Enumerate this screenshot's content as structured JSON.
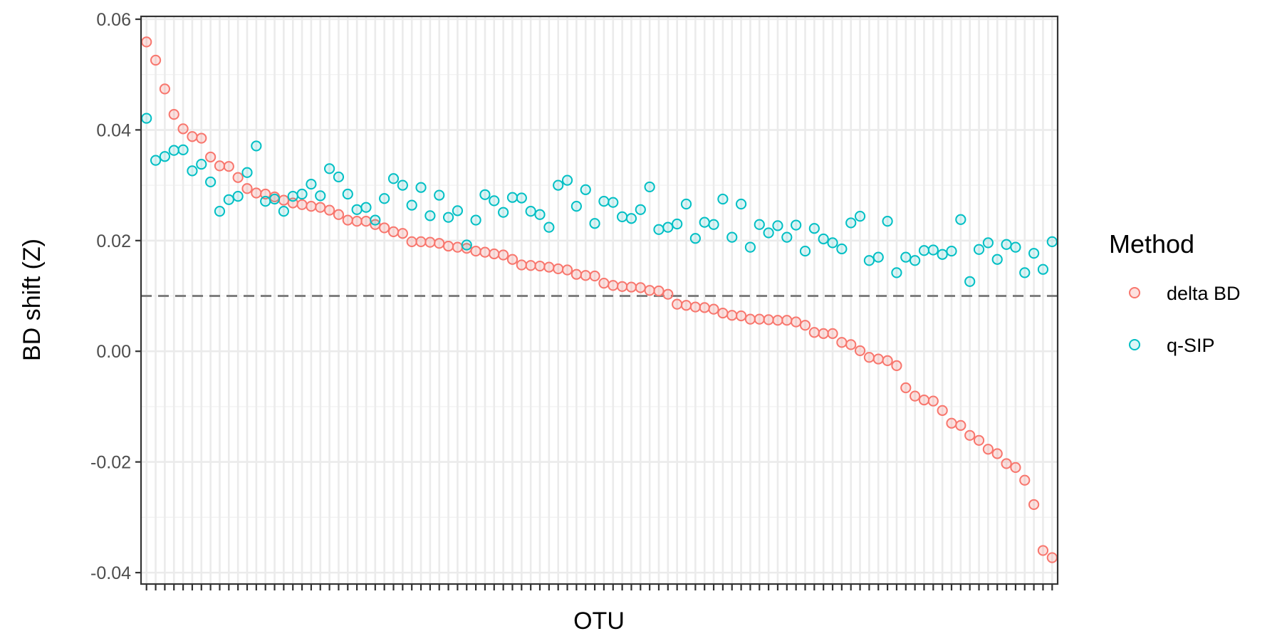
{
  "chart_data": {
    "type": "scatter",
    "title": "",
    "xlabel": "OTU",
    "ylabel": "BD shift (Z)",
    "ylim": [
      -0.0405,
      0.0605
    ],
    "yticks": [
      -0.04,
      -0.02,
      0.0,
      0.02,
      0.04,
      0.06
    ],
    "ytick_labels": [
      "-0.04",
      "-0.02",
      "0.00",
      "0.02",
      "0.04",
      "0.06"
    ],
    "x_tick_labels_visible": false,
    "grid": true,
    "threshold": 0.01,
    "legend": {
      "title": "Method",
      "position": "right"
    },
    "series": [
      {
        "name": "delta BD",
        "color": "#F8766D",
        "values": [
          0.0559,
          0.0526,
          0.0474,
          0.0428,
          0.0402,
          0.0388,
          0.0385,
          0.0351,
          0.0335,
          0.0334,
          0.0314,
          0.0294,
          0.0286,
          0.0284,
          0.0279,
          0.0273,
          0.0268,
          0.0265,
          0.0262,
          0.026,
          0.0255,
          0.0247,
          0.0237,
          0.0235,
          0.0235,
          0.0229,
          0.0223,
          0.0216,
          0.0213,
          0.0198,
          0.0198,
          0.0197,
          0.0195,
          0.019,
          0.0188,
          0.0186,
          0.0181,
          0.0179,
          0.0176,
          0.0174,
          0.0166,
          0.0156,
          0.0155,
          0.0154,
          0.0152,
          0.0149,
          0.0147,
          0.0139,
          0.0137,
          0.0136,
          0.0123,
          0.0119,
          0.0117,
          0.0116,
          0.0115,
          0.011,
          0.0109,
          0.0103,
          0.0085,
          0.0083,
          0.008,
          0.0079,
          0.0076,
          0.0069,
          0.0065,
          0.0064,
          0.0058,
          0.0058,
          0.0057,
          0.0056,
          0.0056,
          0.0053,
          0.0047,
          0.0034,
          0.0032,
          0.0032,
          0.0016,
          0.0012,
          0.0001,
          -0.0011,
          -0.0014,
          -0.0017,
          -0.0026,
          -0.0066,
          -0.0081,
          -0.0088,
          -0.009,
          -0.0107,
          -0.013,
          -0.0134,
          -0.0152,
          -0.0161,
          -0.0177,
          -0.0185,
          -0.0203,
          -0.021,
          -0.0233,
          -0.0277,
          -0.036,
          -0.0373
        ]
      },
      {
        "name": "q-SIP",
        "color": "#00BFC4",
        "values": [
          0.0421,
          0.0345,
          0.0352,
          0.0363,
          0.0364,
          0.0326,
          0.0338,
          0.0306,
          0.0253,
          0.0274,
          0.028,
          0.0323,
          0.0371,
          0.0271,
          0.0275,
          0.0253,
          0.028,
          0.0284,
          0.0302,
          0.0281,
          0.033,
          0.0315,
          0.0284,
          0.0256,
          0.026,
          0.0237,
          0.0276,
          0.0312,
          0.03,
          0.0264,
          0.0296,
          0.0245,
          0.0282,
          0.0242,
          0.0254,
          0.0192,
          0.0237,
          0.0283,
          0.0272,
          0.0251,
          0.0278,
          0.0277,
          0.0253,
          0.0247,
          0.0224,
          0.03,
          0.0309,
          0.0262,
          0.0292,
          0.0231,
          0.0271,
          0.0269,
          0.0243,
          0.024,
          0.0256,
          0.0297,
          0.022,
          0.0224,
          0.023,
          0.0266,
          0.0204,
          0.0233,
          0.0229,
          0.0275,
          0.0206,
          0.0266,
          0.0188,
          0.0229,
          0.0214,
          0.0227,
          0.0206,
          0.0228,
          0.0181,
          0.0222,
          0.0203,
          0.0196,
          0.0185,
          0.0232,
          0.0244,
          0.0164,
          0.017,
          0.0235,
          0.0142,
          0.017,
          0.0164,
          0.0182,
          0.0183,
          0.0175,
          0.0181,
          0.0238,
          0.0126,
          0.0184,
          0.0196,
          0.0166,
          0.0193,
          0.0188,
          0.0142,
          0.0177,
          0.0148,
          0.0198
        ]
      }
    ]
  }
}
